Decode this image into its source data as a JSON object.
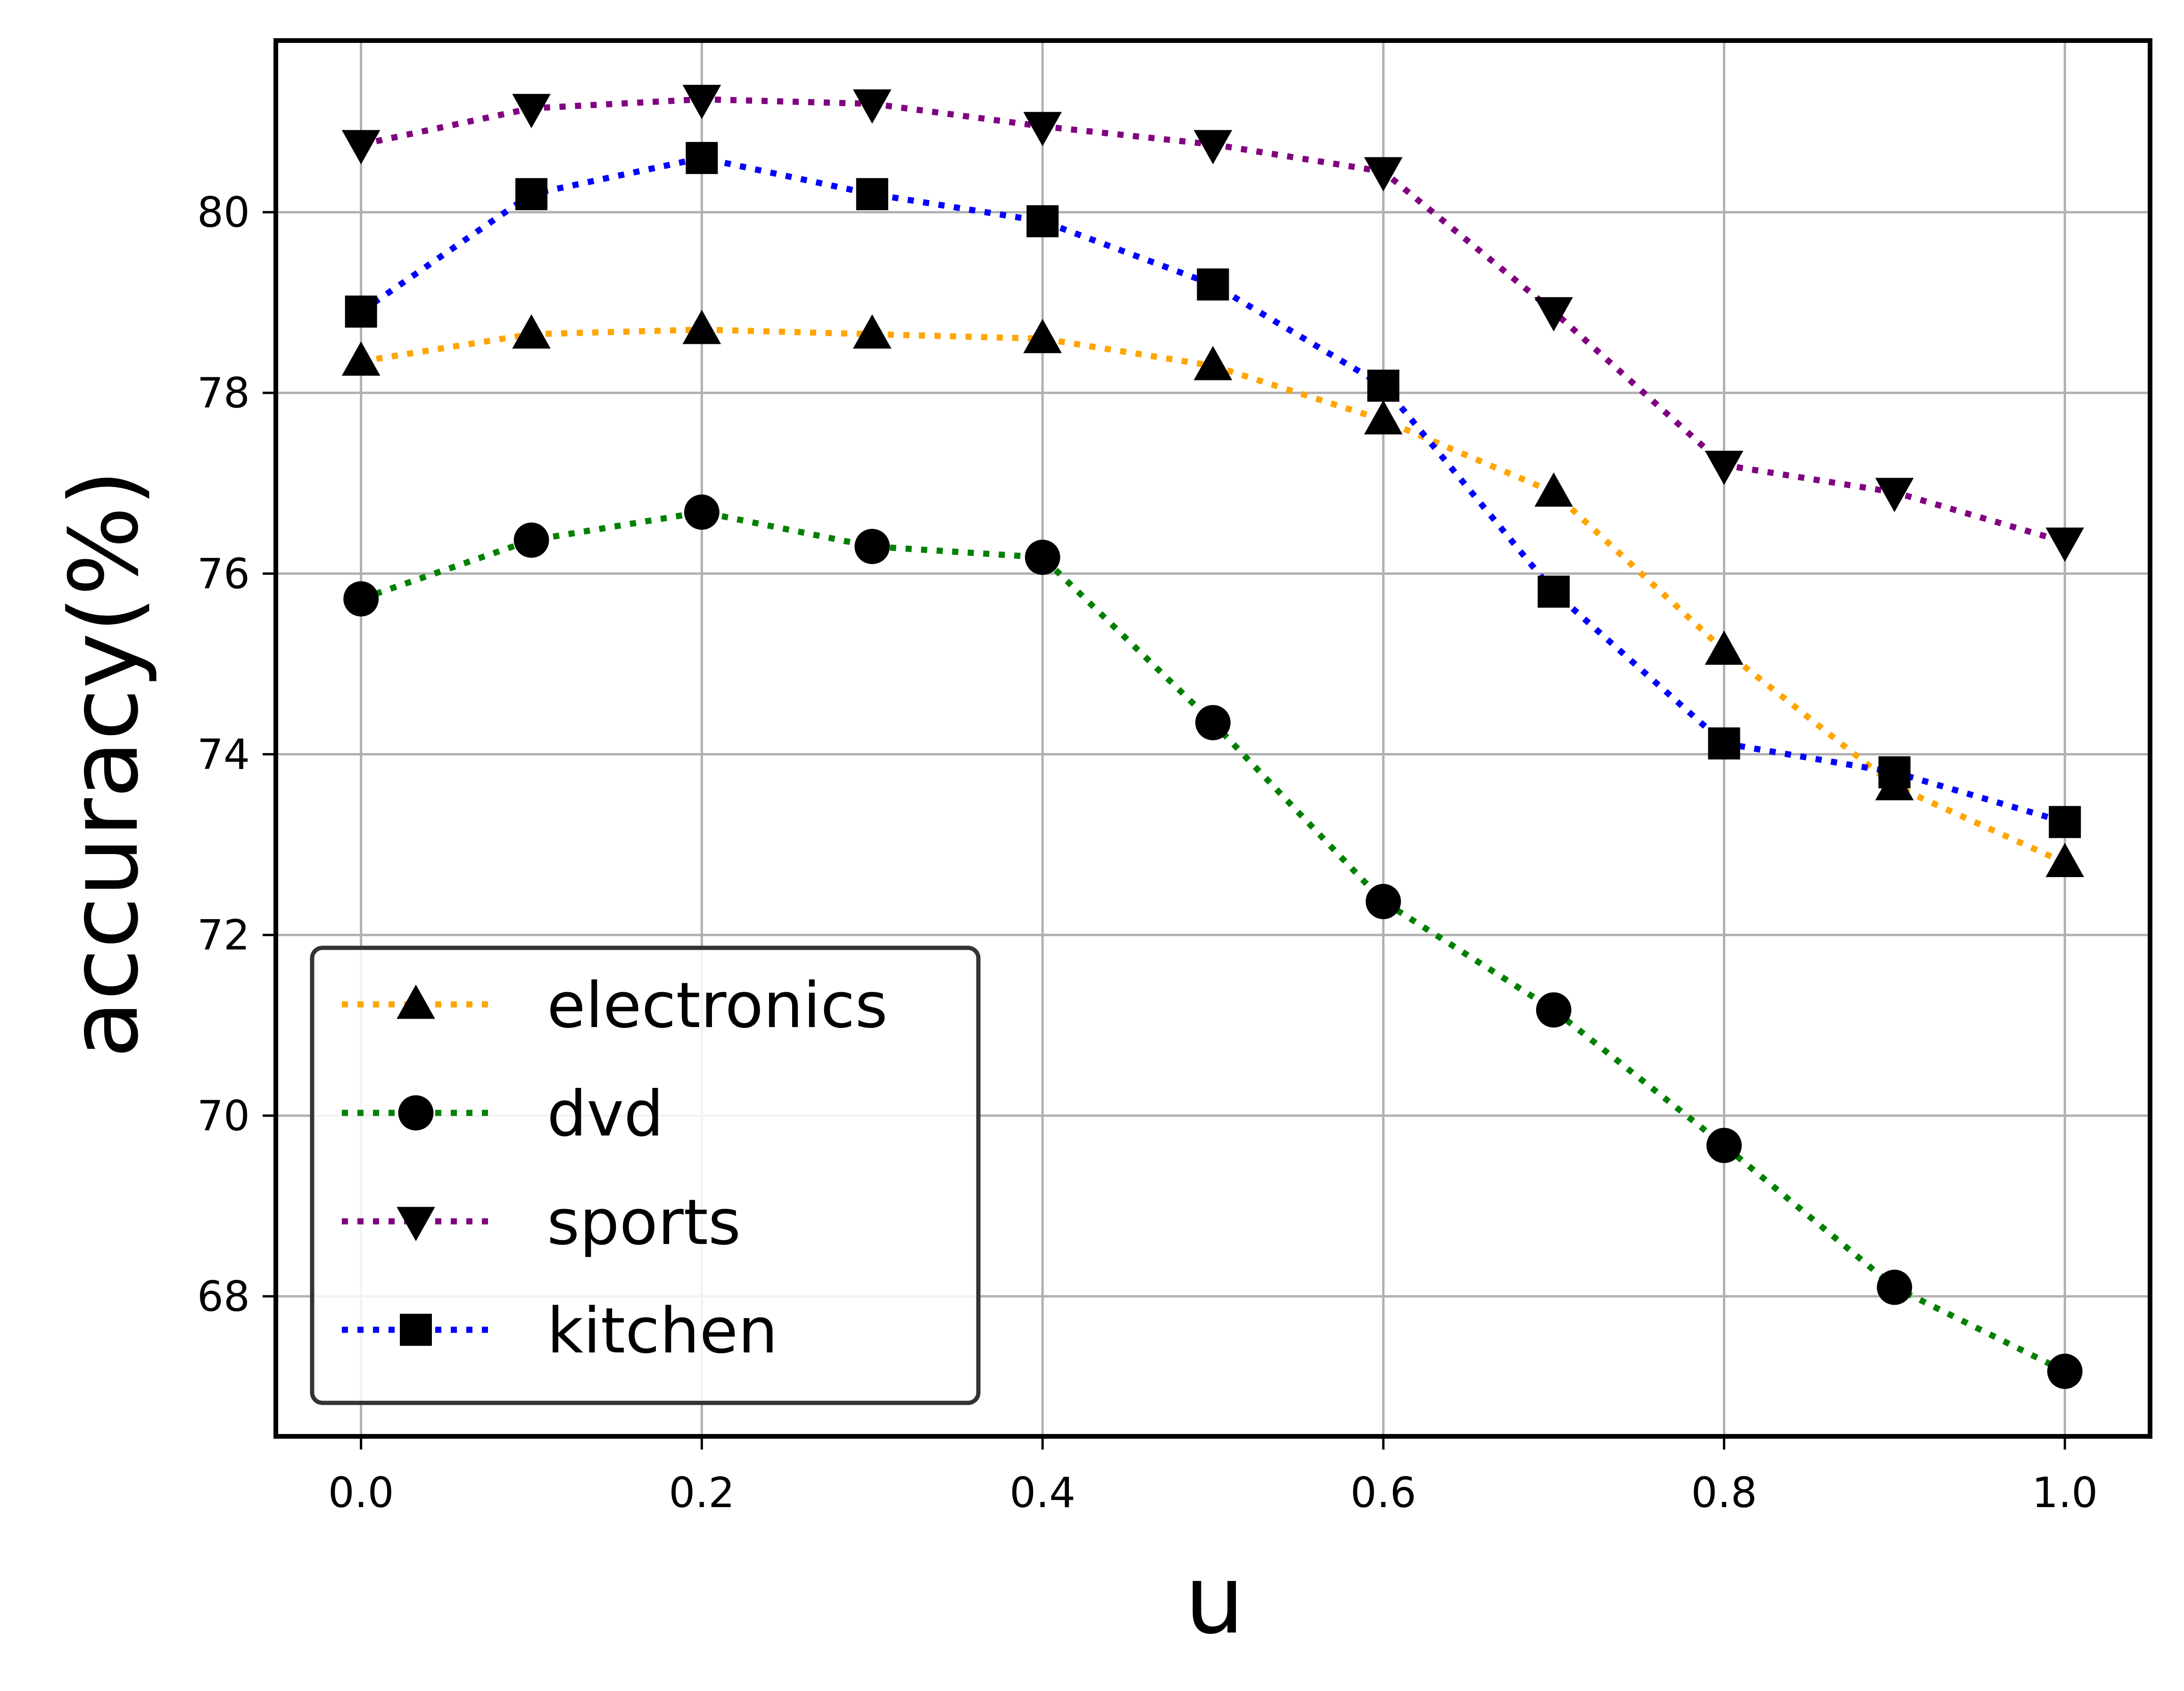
{
  "chart_data": {
    "type": "line",
    "title": "",
    "xlabel": "u",
    "ylabel": "accuracy(%)",
    "x": [
      0.0,
      0.1,
      0.2,
      0.3,
      0.4,
      0.5,
      0.6,
      0.7,
      0.8,
      0.9,
      1.0
    ],
    "xlim": [
      -0.05,
      1.05
    ],
    "ylim": [
      66.45,
      81.9
    ],
    "xticks": [
      0.0,
      0.2,
      0.4,
      0.6,
      0.8,
      1.0
    ],
    "xtick_labels": [
      "0.0",
      "0.2",
      "0.4",
      "0.6",
      "0.8",
      "1.0"
    ],
    "yticks": [
      68,
      70,
      72,
      74,
      76,
      78,
      80
    ],
    "ytick_labels": [
      "68",
      "70",
      "72",
      "74",
      "76",
      "78",
      "80"
    ],
    "grid": true,
    "legend_position": "lower-left",
    "series": [
      {
        "name": "electronics",
        "color": "#FFA500",
        "marker": "triangle-up",
        "values": [
          78.35,
          78.65,
          78.7,
          78.65,
          78.6,
          78.3,
          77.7,
          76.9,
          75.15,
          73.65,
          72.8
        ]
      },
      {
        "name": "dvd",
        "color": "#008000",
        "marker": "circle",
        "values": [
          75.72,
          76.37,
          76.68,
          76.3,
          76.18,
          74.35,
          72.37,
          71.17,
          69.67,
          68.1,
          67.17
        ]
      },
      {
        "name": "sports",
        "color": "#800080",
        "marker": "triangle-down",
        "values": [
          80.75,
          81.15,
          81.25,
          81.2,
          80.95,
          80.75,
          80.45,
          78.9,
          77.2,
          76.9,
          76.35
        ]
      },
      {
        "name": "kitchen",
        "color": "#0000FF",
        "marker": "square",
        "values": [
          78.9,
          80.2,
          80.6,
          80.2,
          79.9,
          79.2,
          78.08,
          75.8,
          74.12,
          73.8,
          73.25
        ]
      }
    ]
  }
}
